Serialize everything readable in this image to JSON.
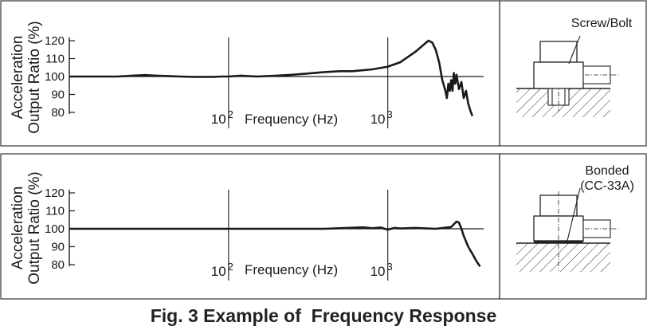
{
  "caption": "Fig. 3 Example of  Frequency Response",
  "colors": {
    "line": "#1a1a1a",
    "frame": "#333333",
    "background": "#ffffff"
  },
  "chart_data": [
    {
      "type": "line",
      "ylabel_line1": "Acceleration",
      "ylabel_line2": "Output Ratio (%)",
      "xlabel": "Frequency (Hz)",
      "x_scale": "log",
      "xlim": [
        10,
        4000
      ],
      "ylim": [
        80,
        120
      ],
      "yticks": [
        80,
        90,
        100,
        110,
        120
      ],
      "xticks": [
        {
          "value": 100,
          "base": "10",
          "exp": "2"
        },
        {
          "value": 1000,
          "base": "10",
          "exp": "3"
        }
      ],
      "reference_line": 100,
      "series": [
        {
          "x": [
            10,
            15,
            20,
            25,
            30,
            35,
            40,
            50,
            60,
            70,
            80,
            90,
            100,
            120,
            150,
            200,
            250,
            300,
            400,
            500,
            600,
            800,
            1000,
            1200,
            1500,
            1800,
            1900,
            2000,
            2100,
            2200,
            2250,
            2300,
            2350,
            2400,
            2450,
            2500,
            2550,
            2600,
            2650,
            2700,
            2800,
            2900,
            3000,
            3100,
            3200,
            3300,
            3400
          ],
          "y": [
            100,
            100,
            100,
            100.5,
            100.8,
            100.5,
            100.3,
            100,
            99.8,
            99.8,
            99.8,
            100,
            100,
            100.5,
            100,
            100.5,
            101,
            101.5,
            102.5,
            103,
            103,
            104,
            105.5,
            108,
            114,
            120,
            119,
            115,
            108,
            98,
            95,
            92,
            88,
            96,
            92,
            98,
            92,
            102,
            96,
            101,
            93,
            97,
            88,
            92,
            85,
            81,
            78
          ]
        }
      ],
      "diagram": {
        "label": "Screw/Bolt"
      }
    },
    {
      "type": "line",
      "ylabel_line1": "Acceleration",
      "ylabel_line2": "Output Ratio (%)",
      "xlabel": "Frequency (Hz)",
      "x_scale": "log",
      "xlim": [
        10,
        4000
      ],
      "ylim": [
        80,
        120
      ],
      "yticks": [
        80,
        90,
        100,
        110,
        120
      ],
      "xticks": [
        {
          "value": 100,
          "base": "10",
          "exp": "2"
        },
        {
          "value": 1000,
          "base": "10",
          "exp": "3"
        }
      ],
      "reference_line": 100,
      "series": [
        {
          "x": [
            10,
            20,
            30,
            50,
            80,
            100,
            150,
            200,
            300,
            400,
            500,
            700,
            800,
            900,
            1000,
            1100,
            1200,
            1500,
            2000,
            2500,
            2700,
            2800,
            2900,
            3000,
            3200,
            3400,
            3600,
            3800
          ],
          "y": [
            100,
            100,
            100,
            100,
            100,
            100,
            100,
            100,
            100,
            100,
            100.3,
            100.8,
            100.3,
            100.7,
            99.5,
            100.5,
            100.2,
            100.5,
            100,
            101,
            104,
            103.5,
            100,
            96,
            90,
            86,
            82,
            79
          ]
        }
      ],
      "diagram": {
        "label_line1": "Bonded",
        "label_line2": "(CC-33A)"
      }
    }
  ]
}
